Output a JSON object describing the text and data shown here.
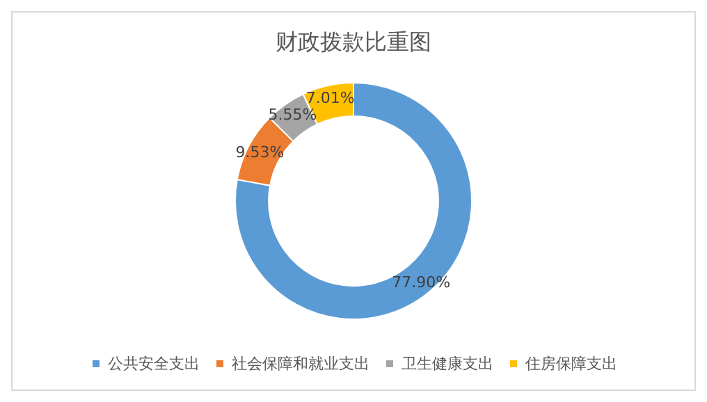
{
  "chart_data": {
    "type": "donut",
    "title": "财政拨款比重图",
    "categories": [
      "公共安全支出",
      "社会保障和就业支出",
      "卫生健康支出",
      "住房保障支出"
    ],
    "values": [
      77.9,
      9.53,
      5.55,
      7.01
    ],
    "colors": [
      "#5b9bd5",
      "#ed7d31",
      "#a5a5a5",
      "#ffc000"
    ],
    "value_labels": [
      "77.90%",
      "9.53%",
      "5.55%",
      "7.01%"
    ],
    "legend": "bottom"
  }
}
